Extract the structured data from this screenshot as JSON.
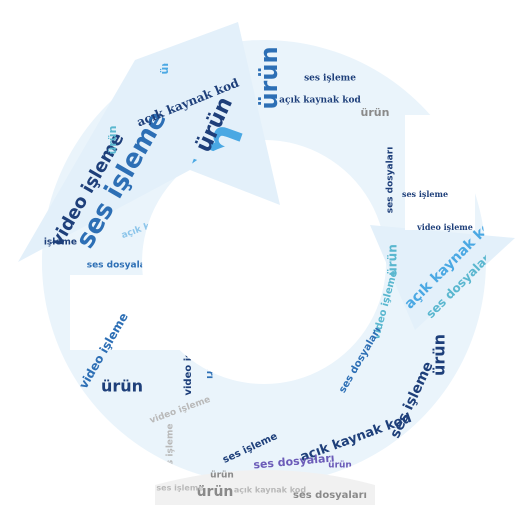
{
  "words": [
    "ürün",
    "ses işleme",
    "video işleme",
    "ses dosyaları",
    "açık kaynak kod"
  ],
  "palette": {
    "sky": "#4aa8e3",
    "navy": "#1e3f7a",
    "blue": "#2d6fb5",
    "teal": "#5ab7cf",
    "light": "#8cc5ea",
    "purple": "#6b5bb8",
    "grey": "#8a8a8a",
    "silver": "#b9b9b9"
  }
}
